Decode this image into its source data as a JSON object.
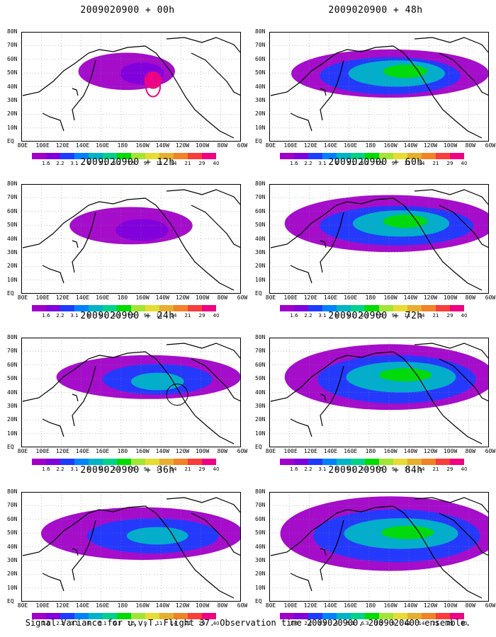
{
  "panels": [
    {
      "title": "2009020900 + 00h"
    },
    {
      "title": "2009020900 + 48h"
    },
    {
      "title": "2009020900 + 12h"
    },
    {
      "title": "2009020900 + 60h"
    },
    {
      "title": "2009020900 + 24h"
    },
    {
      "title": "2009020900 + 72h"
    },
    {
      "title": "2009020900 + 36h"
    },
    {
      "title": "2009020900 + 84h"
    }
  ],
  "lat_labels": [
    "80N",
    "70N",
    "60N",
    "50N",
    "40N",
    "30N",
    "20N",
    "10N",
    "EQ"
  ],
  "lon_labels": [
    "80E",
    "100E",
    "120E",
    "140E",
    "160E",
    "180",
    "160W",
    "140W",
    "120W",
    "100W",
    "80W",
    "60W"
  ],
  "colorbar": {
    "labels": [
      "1.6",
      "2.2",
      "3.1",
      "4",
      "5.1",
      "6.3",
      "7.5",
      "9",
      "11",
      "14",
      "21",
      "29",
      "40"
    ],
    "colors": [
      "#a000c8",
      "#7f00dc",
      "#1e3cff",
      "#0082ff",
      "#00b4c8",
      "#00d28c",
      "#00dc00",
      "#a0e632",
      "#e6dc32",
      "#e6af2d",
      "#f08228",
      "#fa3c3c",
      "#f00082"
    ]
  },
  "caption": "Signal Variance for u,v,T. Flight 37. Observation time 2009020900. 2009020400 ensemble."
}
